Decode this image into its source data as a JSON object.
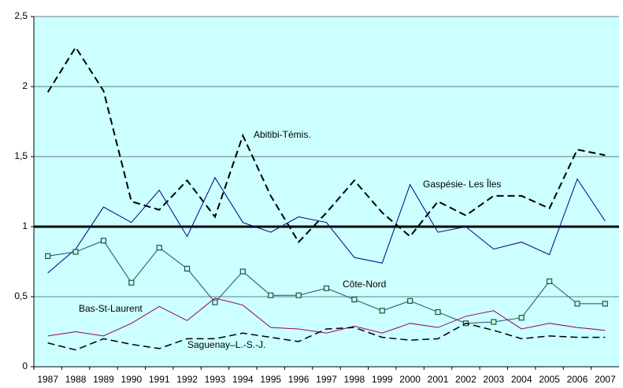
{
  "chart_data": {
    "type": "line",
    "categories": [
      "1987",
      "1988",
      "1989",
      "1990",
      "1991",
      "1992",
      "1993",
      "1994",
      "1995",
      "1996",
      "1997",
      "1998",
      "1999",
      "2000",
      "2001",
      "2002",
      "2003",
      "2004",
      "2005",
      "2006",
      "2007"
    ],
    "series": [
      {
        "name": "Abitibi-Témis.",
        "color": "#000000",
        "style": "dashed",
        "width": 2,
        "values": [
          1.96,
          2.28,
          1.97,
          1.18,
          1.12,
          1.33,
          1.07,
          1.65,
          1.22,
          0.89,
          1.1,
          1.33,
          1.1,
          0.93,
          1.18,
          1.08,
          1.22,
          1.22,
          1.13,
          1.55,
          1.51
        ]
      },
      {
        "name": "Gaspésie- Les Îles",
        "color": "#000080",
        "style": "solid",
        "width": 1,
        "values": [
          0.67,
          0.84,
          1.14,
          1.03,
          1.26,
          0.93,
          1.35,
          1.03,
          0.96,
          1.07,
          1.03,
          0.78,
          0.74,
          1.3,
          0.96,
          1.0,
          0.84,
          0.89,
          0.8,
          1.34,
          1.04
        ]
      },
      {
        "name": "Côte-Nord",
        "color": "#1f4e5f",
        "style": "solid",
        "width": 1,
        "marker": "square",
        "values": [
          0.79,
          0.82,
          0.9,
          0.6,
          0.85,
          0.7,
          0.46,
          0.68,
          0.51,
          0.51,
          0.56,
          0.48,
          0.4,
          0.47,
          0.39,
          0.31,
          0.32,
          0.35,
          0.61,
          0.45,
          0.45
        ]
      },
      {
        "name": "Bas-St-Laurent",
        "color": "#990066",
        "style": "solid",
        "width": 1,
        "values": [
          0.22,
          0.25,
          0.22,
          0.31,
          0.43,
          0.33,
          0.49,
          0.44,
          0.28,
          0.27,
          0.24,
          0.29,
          0.24,
          0.31,
          0.28,
          0.36,
          0.4,
          0.27,
          0.31,
          0.28,
          0.26
        ]
      },
      {
        "name": "Saguenay–L.-S.-J.",
        "color": "#000000",
        "style": "dashed",
        "width": 1.5,
        "values": [
          0.17,
          0.12,
          0.2,
          0.16,
          0.13,
          0.2,
          0.2,
          0.24,
          0.21,
          0.18,
          0.27,
          0.28,
          0.21,
          0.19,
          0.2,
          0.31,
          0.26,
          0.2,
          0.22,
          0.21,
          0.21
        ]
      }
    ],
    "reference_value": 1,
    "ylim": [
      0,
      2.5
    ],
    "yticks": [
      0,
      {
        "value": 0.5,
        "label": "0,5"
      },
      1,
      {
        "value": 1.5,
        "label": "1,5"
      },
      2,
      {
        "value": 2.5,
        "label": "2,5"
      }
    ],
    "grid": true,
    "background": "#ccffff"
  }
}
